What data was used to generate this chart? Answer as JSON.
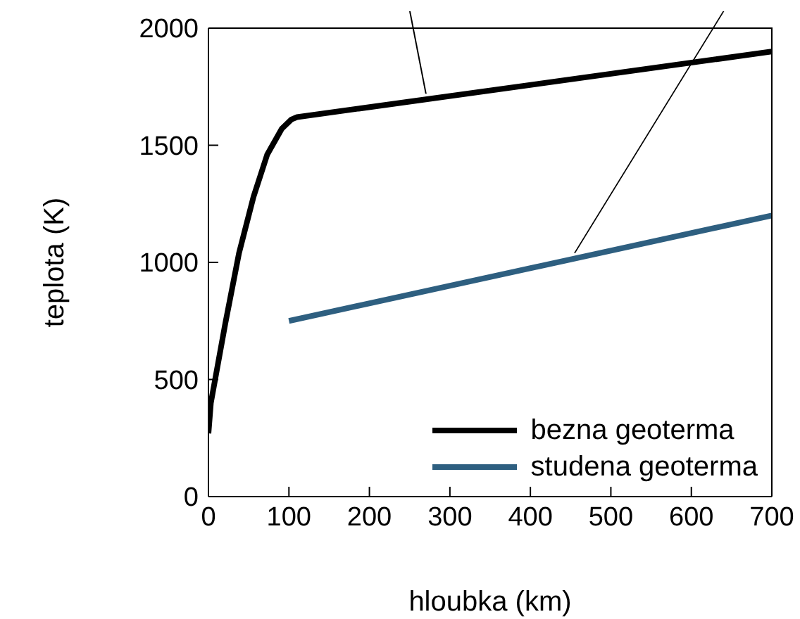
{
  "chart_data": {
    "type": "line",
    "xlabel": "hloubka (km)",
    "ylabel": "teplota (K)",
    "xlim": [
      0,
      700
    ],
    "xticks": [
      0,
      100,
      200,
      300,
      400,
      500,
      600,
      700
    ],
    "ylim": [
      0,
      2000
    ],
    "yticks": [
      0,
      500,
      1000,
      1500,
      2000
    ],
    "grid": false,
    "legend": "bottom right",
    "marker": "none",
    "line_style": "solid",
    "series": [
      {
        "name": "bezna geoterma",
        "color": "#000000",
        "x": [
          0,
          3,
          21,
          38,
          56,
          73,
          91,
          103,
          110,
          700
        ],
        "values": [
          270,
          400,
          740,
          1040,
          1280,
          1460,
          1570,
          1610,
          1620,
          1900
        ]
      },
      {
        "name": "studena geoterma",
        "color": "#2e5f80",
        "x": [
          100,
          700
        ],
        "values": [
          750,
          1200
        ]
      }
    ]
  }
}
